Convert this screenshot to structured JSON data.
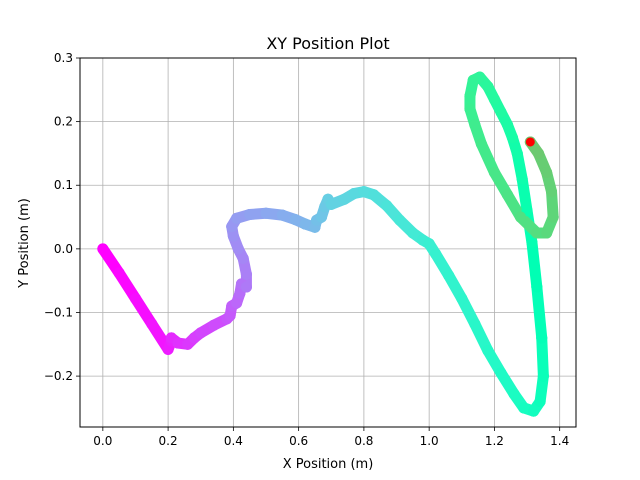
{
  "chart_data": {
    "type": "scatter",
    "title": "XY Position Plot",
    "xlabel": "X Position (m)",
    "ylabel": "Y Position (m)",
    "xlim": [
      -0.07,
      1.45
    ],
    "ylim": [
      -0.28,
      0.3
    ],
    "xticks": [
      0.0,
      0.2,
      0.4,
      0.6,
      0.8,
      1.0,
      1.2,
      1.4
    ],
    "xtick_labels": [
      "0.0",
      "0.2",
      "0.4",
      "0.6",
      "0.8",
      "1.0",
      "1.2",
      "1.4"
    ],
    "yticks": [
      -0.2,
      -0.1,
      0.0,
      0.1,
      0.2,
      0.3
    ],
    "ytick_labels": [
      "−0.2",
      "−0.1",
      "0.0",
      "0.1",
      "0.2",
      "0.3"
    ],
    "grid": true,
    "colormap": "rainbow",
    "path_color_start": "#7f00ff",
    "path_color_end": "#80ffb4",
    "end_marker_color": "#ff0000",
    "series": [
      {
        "x": [
          0.0,
          0.05,
          0.1,
          0.15,
          0.2,
          0.21,
          0.21,
          0.23,
          0.26,
          0.28,
          0.3,
          0.34,
          0.38,
          0.39,
          0.395,
          0.41,
          0.42,
          0.425,
          0.44,
          0.44,
          0.43,
          0.415,
          0.4,
          0.395,
          0.41,
          0.45,
          0.5,
          0.55,
          0.59,
          0.62,
          0.65,
          0.655,
          0.67,
          0.68,
          0.69,
          0.7,
          0.74,
          0.77,
          0.8,
          0.83,
          0.87,
          0.91,
          0.95,
          0.98,
          1.0,
          1.02,
          1.06,
          1.1,
          1.14,
          1.18,
          1.22,
          1.26,
          1.29,
          1.32,
          1.34,
          1.35,
          1.345,
          1.33,
          1.315,
          1.3,
          1.285,
          1.27,
          1.255,
          1.24,
          1.22,
          1.2,
          1.18,
          1.155,
          1.135,
          1.125,
          1.125,
          1.14,
          1.16,
          1.2,
          1.24,
          1.28,
          1.33,
          1.36,
          1.38,
          1.375,
          1.36,
          1.335,
          1.31
        ],
        "y": [
          0.0,
          -0.038,
          -0.078,
          -0.118,
          -0.158,
          -0.145,
          -0.14,
          -0.148,
          -0.15,
          -0.14,
          -0.132,
          -0.12,
          -0.11,
          -0.105,
          -0.09,
          -0.085,
          -0.07,
          -0.055,
          -0.06,
          -0.04,
          -0.015,
          0.0,
          0.02,
          0.035,
          0.048,
          0.054,
          0.056,
          0.053,
          0.046,
          0.039,
          0.034,
          0.045,
          0.05,
          0.066,
          0.078,
          0.07,
          0.078,
          0.087,
          0.09,
          0.085,
          0.068,
          0.045,
          0.025,
          0.014,
          0.008,
          -0.008,
          -0.042,
          -0.078,
          -0.118,
          -0.16,
          -0.195,
          -0.228,
          -0.25,
          -0.255,
          -0.24,
          -0.2,
          -0.14,
          -0.06,
          0.01,
          0.06,
          0.11,
          0.15,
          0.175,
          0.195,
          0.215,
          0.235,
          0.255,
          0.27,
          0.265,
          0.24,
          0.22,
          0.195,
          0.165,
          0.12,
          0.085,
          0.05,
          0.025,
          0.025,
          0.05,
          0.09,
          0.12,
          0.15,
          0.168
        ]
      }
    ],
    "end_point": {
      "x": 1.31,
      "y": 0.168
    }
  }
}
